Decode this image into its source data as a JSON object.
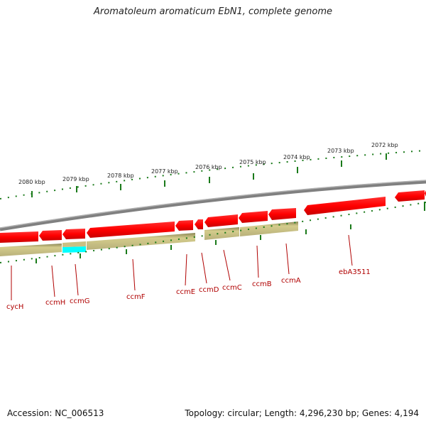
{
  "title": "Aromatoleum aromaticum EbN1, complete genome",
  "scale_labels": [
    "2080 kbp",
    "2079 kbp",
    "2078 kbp",
    "2077 kbp",
    "2076 kbp",
    "2075 kbp",
    "2074 kbp",
    "2073 kbp",
    "2072 kbp"
  ],
  "genes": [
    "cycH",
    "ccmH",
    "ccmG",
    "ccmF",
    "ccmE",
    "ccmD",
    "ccmC",
    "ccmB",
    "ccmA",
    "ebA3511"
  ],
  "footer": {
    "accession": "Accession: NC_006513",
    "summary": "Topology: circular; Length: 4,296,230 bp; Genes: 4,194"
  },
  "colors": {
    "cds": "#ff0000",
    "gene": "#bdb57a",
    "highlight": "#00ffff",
    "backbone": "#808080",
    "tick": "#1a7a1a",
    "label": "#b00000"
  }
}
